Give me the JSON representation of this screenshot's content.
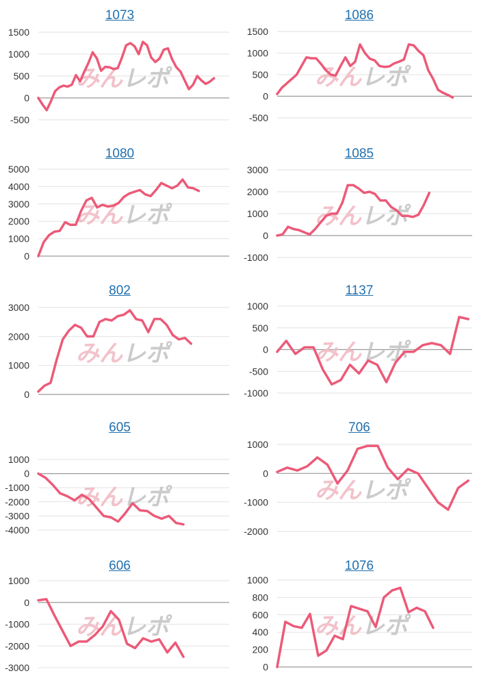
{
  "colors": {
    "line": "#ec5a78",
    "watermark_pink": "#f0b8c2",
    "watermark_gray": "#c2c2c2",
    "grid": "#e2e2e2",
    "axis": "#c8c8c8",
    "tick": "#333333",
    "title": "#1f6fae"
  },
  "watermark": "みんレポ",
  "chart_data": [
    {
      "type": "line",
      "title": "1073",
      "ylim": [
        -500,
        1500
      ],
      "yticks": [
        -500,
        0,
        500,
        1000,
        1500
      ],
      "grid": true,
      "x": [
        0,
        3,
        5,
        7,
        9,
        11,
        13,
        16,
        18,
        20,
        22,
        24,
        26,
        28,
        30,
        32,
        34,
        36,
        38,
        40,
        42,
        44,
        46,
        48,
        50,
        52,
        54,
        56,
        58,
        60,
        62,
        64,
        66,
        68,
        70,
        72,
        74,
        76,
        78,
        80,
        82,
        84,
        86,
        88,
        90,
        92,
        94,
        96,
        98,
        100
      ],
      "values": [
        0,
        -150,
        -280,
        -80,
        150,
        240,
        280,
        260,
        300,
        520,
        380,
        600,
        800,
        1040,
        900,
        620,
        710,
        700,
        660,
        680,
        920,
        1200,
        1250,
        1180,
        1000,
        1280,
        1200,
        920,
        820,
        900,
        1100,
        1130,
        880,
        700,
        600,
        400,
        200,
        300,
        500,
        400,
        320,
        370,
        450,
        null,
        null,
        null,
        null,
        null,
        null,
        null
      ]
    },
    {
      "type": "line",
      "title": "1086",
      "ylim": [
        -500,
        1500
      ],
      "yticks": [
        -500,
        0,
        500,
        1000,
        1500
      ],
      "grid": true,
      "x": [
        0,
        3,
        5,
        7,
        9,
        11,
        13,
        16,
        18,
        20,
        22,
        24,
        26,
        28,
        30,
        32,
        34,
        36,
        38,
        40,
        42,
        44,
        46,
        48,
        50,
        52,
        54,
        56,
        58,
        60,
        62,
        64,
        66,
        68,
        70,
        72,
        74,
        76,
        78,
        80,
        82,
        84,
        86,
        88,
        90,
        92,
        94,
        96,
        98,
        100
      ],
      "values": [
        50,
        200,
        300,
        400,
        500,
        700,
        900,
        880,
        880,
        750,
        600,
        500,
        480,
        700,
        900,
        700,
        800,
        1200,
        1000,
        870,
        830,
        700,
        680,
        690,
        760,
        800,
        850,
        1200,
        1180,
        1050,
        950,
        600,
        400,
        150,
        80,
        30,
        -30,
        null,
        null,
        null,
        null,
        null,
        null,
        null,
        null,
        null,
        null,
        null,
        null,
        null
      ]
    },
    {
      "type": "line",
      "title": "1080",
      "ylim": [
        0,
        5000
      ],
      "yticks": [
        0,
        1000,
        2000,
        3000,
        4000,
        5000
      ],
      "grid": true,
      "x": [
        0,
        3,
        5,
        7,
        9,
        11,
        13,
        16,
        18,
        20,
        22,
        24,
        26,
        28,
        30,
        32,
        34,
        36,
        38,
        40,
        42,
        44,
        46,
        48,
        50,
        52,
        54,
        56,
        58,
        60,
        62,
        64,
        66,
        68,
        70,
        72,
        74,
        76,
        78,
        80,
        82,
        84,
        86,
        88,
        90,
        92,
        94,
        96,
        98,
        100
      ],
      "values": [
        0,
        800,
        1200,
        1400,
        1450,
        1950,
        1800,
        1800,
        2600,
        3200,
        3350,
        2800,
        2950,
        2850,
        2900,
        3050,
        3400,
        3600,
        3700,
        3800,
        3550,
        3450,
        3800,
        4200,
        4050,
        3900,
        4050,
        4400,
        3950,
        3900,
        3750,
        null,
        null,
        null,
        null,
        null,
        null,
        null,
        null,
        null,
        null,
        null,
        null,
        null,
        null,
        null,
        null,
        null,
        null,
        null
      ]
    },
    {
      "type": "line",
      "title": "1085",
      "ylim": [
        -1000,
        3000
      ],
      "yticks": [
        -1000,
        0,
        1000,
        2000,
        3000
      ],
      "grid": true,
      "x": [
        0,
        3,
        5,
        7,
        9,
        11,
        13,
        16,
        18,
        20,
        22,
        24,
        26,
        28,
        30,
        32,
        34,
        36,
        38,
        40,
        42,
        44,
        46,
        48,
        50,
        52,
        54,
        56,
        58,
        60,
        62,
        64,
        66,
        68,
        70,
        72,
        74,
        76,
        78,
        80,
        82,
        84,
        86,
        88,
        90,
        92,
        94,
        96,
        98,
        100
      ],
      "values": [
        0,
        50,
        400,
        300,
        250,
        150,
        50,
        300,
        600,
        900,
        1000,
        1000,
        1500,
        2300,
        2300,
        2150,
        1950,
        2000,
        1900,
        1600,
        1600,
        1300,
        1150,
        900,
        900,
        850,
        950,
        1400,
        1950,
        null,
        null,
        null,
        null,
        null,
        null,
        null,
        null,
        null,
        null,
        null,
        null,
        null,
        null,
        null,
        null,
        null,
        null,
        null,
        null,
        null
      ]
    },
    {
      "type": "line",
      "title": "802",
      "ylim": [
        0,
        3000
      ],
      "yticks": [
        0,
        1000,
        2000,
        3000
      ],
      "grid": true,
      "x": [
        0,
        3,
        5,
        7,
        9,
        11,
        13,
        16,
        18,
        20,
        22,
        24,
        26,
        28,
        30,
        32,
        34,
        36,
        38,
        40,
        42,
        44,
        46,
        48,
        50,
        52,
        54,
        56,
        58,
        60,
        62,
        64,
        66,
        68,
        70,
        72,
        74,
        76,
        78,
        80,
        82,
        84,
        86,
        88,
        90,
        92,
        94,
        96,
        98,
        100
      ],
      "values": [
        100,
        300,
        400,
        1200,
        1900,
        2200,
        2400,
        2300,
        2000,
        2000,
        2500,
        2600,
        2550,
        2700,
        2750,
        2900,
        2600,
        2550,
        2150,
        2600,
        2600,
        2400,
        2050,
        1900,
        1950,
        1750,
        null,
        null,
        null,
        null,
        null,
        null,
        null,
        null,
        null,
        null,
        null,
        null,
        null,
        null,
        null,
        null,
        null,
        null,
        null,
        null,
        null,
        null,
        null,
        null
      ]
    },
    {
      "type": "line",
      "title": "1137",
      "ylim": [
        -1000,
        1000
      ],
      "yticks": [
        -1000,
        -500,
        0,
        500,
        1000
      ],
      "grid": true,
      "x": [
        0,
        3,
        5,
        7,
        9,
        11,
        13,
        16,
        18,
        20,
        22,
        24,
        26,
        28,
        30,
        32,
        34,
        36,
        38,
        40,
        42,
        44,
        46,
        48,
        50,
        52,
        54,
        56,
        58,
        60,
        62,
        64,
        66,
        68,
        70,
        72,
        74,
        76,
        78,
        80,
        82,
        84,
        86,
        88,
        90,
        92,
        94,
        96,
        98,
        100
      ],
      "values": [
        -50,
        200,
        -100,
        50,
        50,
        -450,
        -800,
        -700,
        -350,
        -550,
        -250,
        -350,
        -750,
        -300,
        -50,
        -50,
        100,
        150,
        100,
        -100,
        750,
        700,
        null,
        null,
        null,
        null,
        null,
        null,
        null,
        null,
        null,
        null,
        null,
        null,
        null,
        null,
        null,
        null,
        null,
        null,
        null,
        null,
        null,
        null,
        null,
        null,
        null,
        null,
        null,
        null
      ]
    },
    {
      "type": "line",
      "title": "605",
      "ylim": [
        -4000,
        1000
      ],
      "yticks": [
        -4000,
        -3000,
        -2000,
        -1000,
        0,
        1000
      ],
      "grid": true,
      "x": [
        0,
        3,
        5,
        7,
        9,
        11,
        13,
        16,
        18,
        20,
        22,
        24,
        26,
        28,
        30,
        32,
        34,
        36,
        38,
        40,
        42,
        44,
        46,
        48,
        50,
        52,
        54,
        56,
        58,
        60,
        62,
        64,
        66,
        68,
        70,
        72,
        74,
        76,
        78,
        80,
        82,
        84,
        86,
        88,
        90,
        92,
        94,
        96,
        98,
        100
      ],
      "values": [
        0,
        -300,
        -800,
        -1400,
        -1600,
        -1900,
        -1500,
        -1800,
        -2400,
        -3000,
        -3100,
        -3400,
        -2800,
        -2100,
        -2600,
        -2650,
        -3000,
        -3200,
        -3000,
        -3500,
        -3600,
        null,
        null,
        null,
        null,
        null,
        null,
        null,
        null,
        null,
        null,
        null,
        null,
        null,
        null,
        null,
        null,
        null,
        null,
        null,
        null,
        null,
        null,
        null,
        null,
        null,
        null,
        null,
        null,
        null
      ]
    },
    {
      "type": "line",
      "title": "706",
      "ylim": [
        -2000,
        1000
      ],
      "yticks": [
        -2000,
        -1000,
        0,
        1000
      ],
      "grid": true,
      "x": [
        0,
        3,
        5,
        7,
        9,
        11,
        13,
        16,
        18,
        20,
        22,
        24,
        26,
        28,
        30,
        32,
        34,
        36,
        38,
        40,
        42,
        44,
        46,
        48,
        50,
        52,
        54,
        56,
        58,
        60,
        62,
        64,
        66,
        68,
        70,
        72,
        74,
        76,
        78,
        80,
        82,
        84,
        86,
        88,
        90,
        92,
        94,
        96,
        98,
        100
      ],
      "values": [
        50,
        200,
        100,
        250,
        550,
        300,
        -350,
        100,
        850,
        950,
        950,
        200,
        -200,
        150,
        0,
        -500,
        -1000,
        -1250,
        -500,
        -250,
        null,
        null,
        null,
        null,
        null,
        null,
        null,
        null,
        null,
        null,
        null,
        null,
        null,
        null,
        null,
        null,
        null,
        null,
        null,
        null,
        null,
        null,
        null,
        null,
        null,
        null,
        null,
        null,
        null,
        null
      ]
    },
    {
      "type": "line",
      "title": "606",
      "ylim": [
        -3000,
        1000
      ],
      "yticks": [
        -3000,
        -2000,
        -1000,
        0,
        1000
      ],
      "grid": true,
      "x": [
        0,
        3,
        5,
        7,
        9,
        11,
        13,
        16,
        18,
        20,
        22,
        24,
        26,
        28,
        30,
        32,
        34,
        36,
        38,
        40,
        42,
        44,
        46,
        48,
        50,
        52,
        54,
        56,
        58,
        60,
        62,
        64,
        66,
        68,
        70,
        72,
        74,
        76,
        78,
        80,
        82,
        84,
        86,
        88,
        90,
        92,
        94,
        96,
        98,
        100
      ],
      "values": [
        100,
        150,
        -600,
        -1300,
        -2000,
        -1800,
        -1800,
        -1500,
        -1100,
        -400,
        -800,
        -1900,
        -2100,
        -1650,
        -1800,
        -1700,
        -2300,
        -1850,
        -2500,
        null,
        null,
        null,
        null,
        null,
        null,
        null,
        null,
        null,
        null,
        null,
        null,
        null,
        null,
        null,
        null,
        null,
        null,
        null,
        null,
        null,
        null,
        null,
        null,
        null,
        null,
        null,
        null,
        null,
        null,
        null
      ]
    },
    {
      "type": "line",
      "title": "1076",
      "ylim": [
        0,
        1000
      ],
      "yticks": [
        0,
        200,
        400,
        600,
        800,
        1000
      ],
      "grid": true,
      "x": [
        0,
        3,
        5,
        7,
        9,
        11,
        13,
        16,
        18,
        20,
        22,
        24,
        26,
        28,
        30,
        32,
        34,
        36,
        38,
        40,
        42,
        44,
        46,
        48,
        50,
        52,
        54,
        56,
        58,
        60,
        62,
        64,
        66,
        68,
        70,
        72,
        74,
        76,
        78,
        80,
        82,
        84,
        86,
        88,
        90,
        92,
        94,
        96,
        98,
        100
      ],
      "values": [
        0,
        520,
        470,
        450,
        610,
        130,
        190,
        360,
        320,
        700,
        670,
        640,
        460,
        800,
        880,
        910,
        630,
        680,
        640,
        450,
        null,
        null,
        null,
        null,
        null,
        null,
        null,
        null,
        null,
        null,
        null,
        null,
        null,
        null,
        null,
        null,
        null,
        null,
        null,
        null,
        null,
        null,
        null,
        null,
        null,
        null,
        null,
        null,
        null,
        null
      ]
    }
  ]
}
